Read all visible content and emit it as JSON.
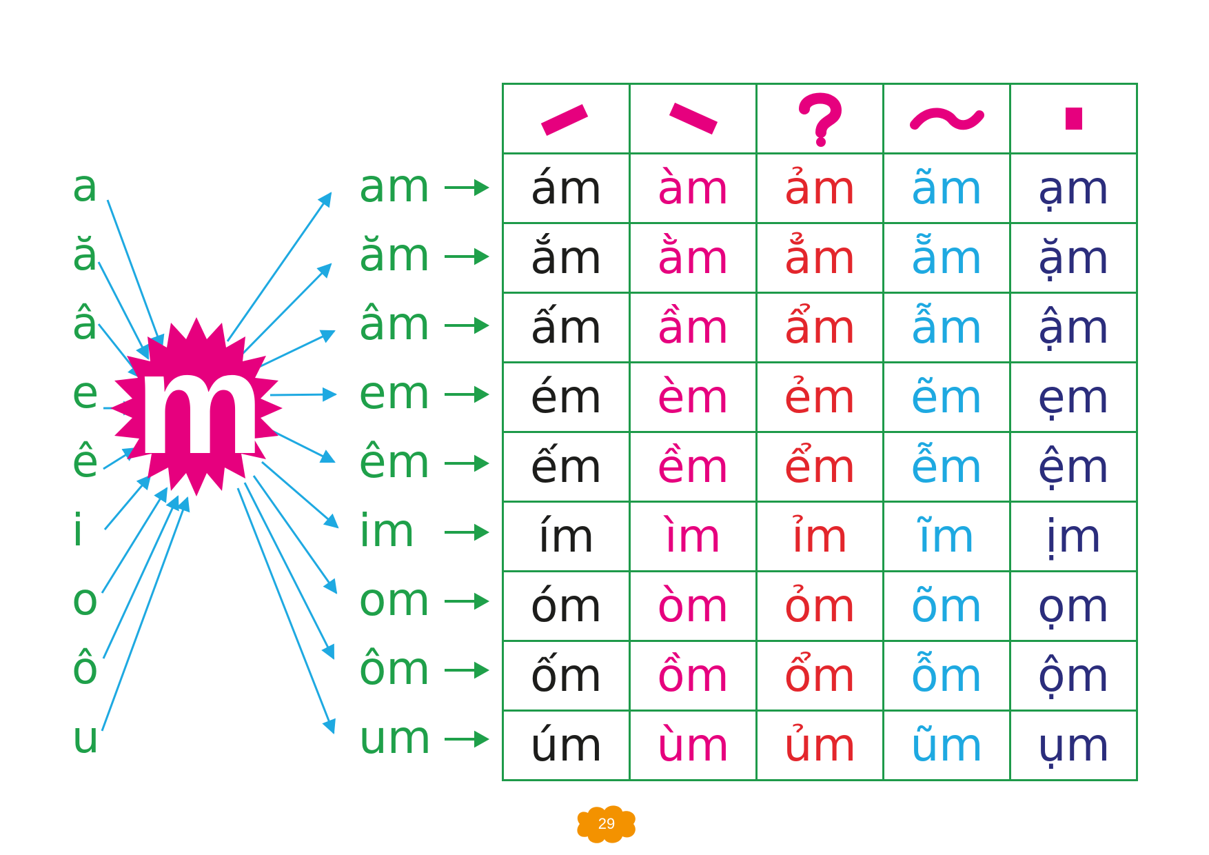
{
  "vowels": [
    "a",
    "ă",
    "â",
    "e",
    "ê",
    "i",
    "o",
    "ô",
    "u"
  ],
  "center_letter": "m",
  "rhymes": [
    "am",
    "ăm",
    "âm",
    "em",
    "êm",
    "im",
    "om",
    "ôm",
    "um"
  ],
  "tone_marks": [
    "sắc",
    "huyền",
    "hỏi",
    "ngã",
    "nặng"
  ],
  "table_rows": [
    [
      "ám",
      "àm",
      "ảm",
      "ãm",
      "ạm"
    ],
    [
      "ắm",
      "ằm",
      "ẳm",
      "ẵm",
      "ặm"
    ],
    [
      "ấm",
      "ầm",
      "ẩm",
      "ẫm",
      "ậm"
    ],
    [
      "ém",
      "èm",
      "ẻm",
      "ẽm",
      "ẹm"
    ],
    [
      "ếm",
      "ềm",
      "ểm",
      "ễm",
      "ệm"
    ],
    [
      "ím",
      "ìm",
      "ỉm",
      "ĩm",
      "ịm"
    ],
    [
      "óm",
      "òm",
      "ỏm",
      "õm",
      "ọm"
    ],
    [
      "ốm",
      "ồm",
      "ổm",
      "ỗm",
      "ộm"
    ],
    [
      "úm",
      "ùm",
      "ủm",
      "ũm",
      "ụm"
    ]
  ],
  "column_colors": [
    "#1d1d1b",
    "#e6007e",
    "#e3262c",
    "#1ea9e1",
    "#2b2d7c"
  ],
  "colors": {
    "vowel_green": "#1fa04a",
    "grid_green": "#1e9a4a",
    "tone_pink": "#e6007e",
    "arrow_blue": "#1ea9e1",
    "badge_orange": "#f39200"
  },
  "page_number": "29"
}
